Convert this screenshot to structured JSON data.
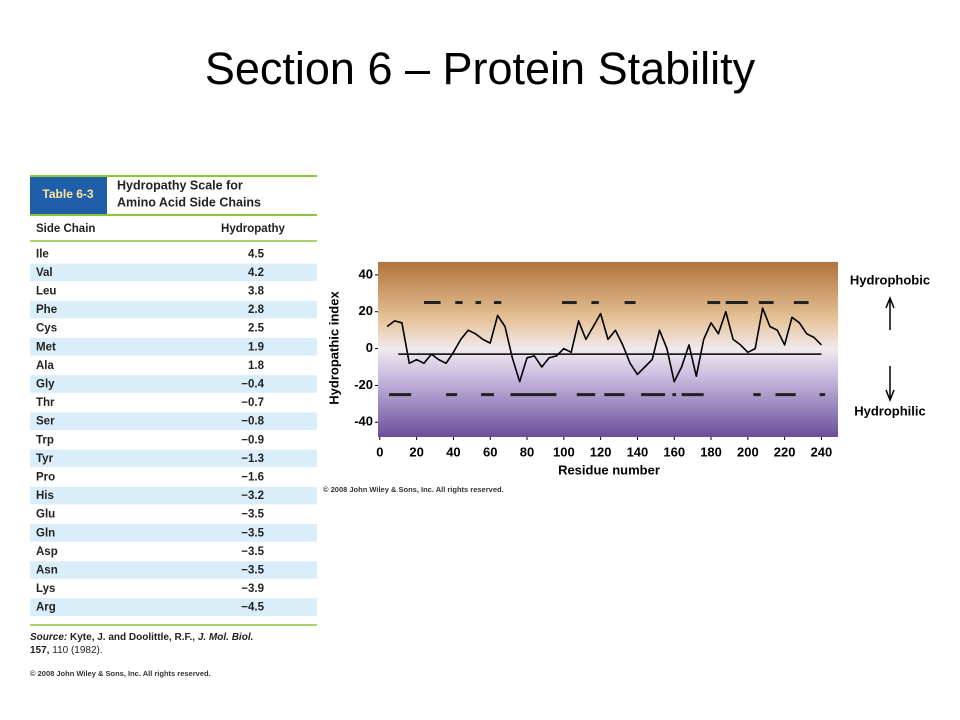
{
  "title": "Section 6 – Protein Stability",
  "table": {
    "label": "Table 6-3",
    "caption": [
      "Hydropathy Scale for",
      "Amino Acid Side Chains"
    ],
    "headers": [
      "Side Chain",
      "Hydropathy"
    ],
    "rows": [
      [
        "Ile",
        "4.5"
      ],
      [
        "Val",
        "4.2"
      ],
      [
        "Leu",
        "3.8"
      ],
      [
        "Phe",
        "2.8"
      ],
      [
        "Cys",
        "2.5"
      ],
      [
        "Met",
        "1.9"
      ],
      [
        "Ala",
        "1.8"
      ],
      [
        "Gly",
        "−0.4"
      ],
      [
        "Thr",
        "−0.7"
      ],
      [
        "Ser",
        "−0.8"
      ],
      [
        "Trp",
        "−0.9"
      ],
      [
        "Tyr",
        "−1.3"
      ],
      [
        "Pro",
        "−1.6"
      ],
      [
        "His",
        "−3.2"
      ],
      [
        "Glu",
        "−3.5"
      ],
      [
        "Gln",
        "−3.5"
      ],
      [
        "Asp",
        "−3.5"
      ],
      [
        "Asn",
        "−3.5"
      ],
      [
        "Lys",
        "−3.9"
      ],
      [
        "Arg",
        "−4.5"
      ]
    ],
    "source": {
      "label": "Source:",
      "authors": "Kyte, J. and Doolittle, R.F.,",
      "journal": "J. Mol. Biol.",
      "volume": "157,",
      "rest": "110 (1982)."
    },
    "copyright": "© 2008 John Wiley & Sons, Inc. All rights reserved."
  },
  "chart_data": {
    "type": "line",
    "xlabel": "Residue number",
    "ylabel": "Hydropathic index",
    "x": [
      4,
      8,
      12,
      16,
      20,
      24,
      28,
      32,
      36,
      40,
      44,
      48,
      52,
      56,
      60,
      64,
      68,
      72,
      76,
      80,
      84,
      88,
      92,
      96,
      100,
      104,
      108,
      112,
      116,
      120,
      124,
      128,
      132,
      136,
      140,
      144,
      148,
      152,
      156,
      160,
      164,
      168,
      172,
      176,
      180,
      184,
      188,
      192,
      196,
      200,
      204,
      208,
      212,
      216,
      220,
      224,
      228,
      232,
      236,
      240
    ],
    "values": [
      12,
      15,
      14,
      -8,
      -6,
      -8,
      -3,
      -6,
      -8,
      -2,
      5,
      10,
      8,
      5,
      3,
      18,
      12,
      -5,
      -18,
      -5,
      -4,
      -10,
      -5,
      -4,
      0,
      -2,
      15,
      5,
      12,
      19,
      5,
      10,
      2,
      -8,
      -14,
      -10,
      -6,
      10,
      0,
      -18,
      -10,
      2,
      -15,
      5,
      14,
      8,
      20,
      5,
      2,
      -2,
      0,
      22,
      12,
      10,
      2,
      17,
      14,
      8,
      6,
      2
    ],
    "color": "#000000",
    "xlim": [
      -1,
      249
    ],
    "ylim": [
      -48,
      47
    ],
    "xticks": [
      0,
      20,
      40,
      60,
      80,
      100,
      120,
      140,
      160,
      180,
      200,
      220,
      240
    ],
    "yticks": [
      -40,
      -20,
      0,
      20,
      40
    ],
    "reference_line": {
      "y": -3,
      "x": [
        10,
        240
      ]
    },
    "hydrophobic_regions": {
      "y": 25,
      "ranges": [
        [
          24,
          33
        ],
        [
          41,
          45
        ],
        [
          52,
          55
        ],
        [
          62,
          66
        ],
        [
          99,
          107
        ],
        [
          115,
          119
        ],
        [
          133,
          139
        ],
        [
          178,
          185
        ],
        [
          188,
          200
        ],
        [
          206,
          214
        ],
        [
          225,
          233
        ]
      ]
    },
    "hydrophilic_regions": {
      "y": -25,
      "ranges": [
        [
          5,
          17
        ],
        [
          36,
          42
        ],
        [
          55,
          62
        ],
        [
          71,
          96
        ],
        [
          107,
          117
        ],
        [
          122,
          133
        ],
        [
          142,
          155
        ],
        [
          159,
          161
        ],
        [
          164,
          176
        ],
        [
          203,
          207
        ],
        [
          215,
          226
        ],
        [
          239,
          242
        ]
      ]
    },
    "annotations": [
      "Hydrophobic",
      "Hydrophilic"
    ],
    "copyright": "© 2008 John Wiley & Sons, Inc. All rights reserved."
  }
}
